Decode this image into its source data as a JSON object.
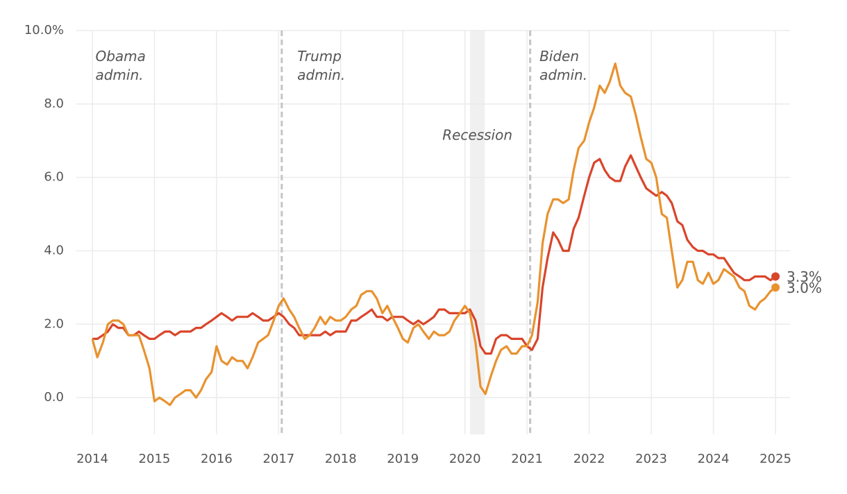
{
  "chart_data": {
    "type": "line",
    "x": [
      2014.0,
      2014.08,
      2014.17,
      2014.25,
      2014.33,
      2014.42,
      2014.5,
      2014.58,
      2014.67,
      2014.75,
      2014.83,
      2014.92,
      2015.0,
      2015.08,
      2015.17,
      2015.25,
      2015.33,
      2015.42,
      2015.5,
      2015.58,
      2015.67,
      2015.75,
      2015.83,
      2015.92,
      2016.0,
      2016.08,
      2016.17,
      2016.25,
      2016.33,
      2016.42,
      2016.5,
      2016.58,
      2016.67,
      2016.75,
      2016.83,
      2016.92,
      2017.0,
      2017.08,
      2017.17,
      2017.25,
      2017.33,
      2017.42,
      2017.5,
      2017.58,
      2017.67,
      2017.75,
      2017.83,
      2017.92,
      2018.0,
      2018.08,
      2018.17,
      2018.25,
      2018.33,
      2018.42,
      2018.5,
      2018.58,
      2018.67,
      2018.75,
      2018.83,
      2018.92,
      2019.0,
      2019.08,
      2019.17,
      2019.25,
      2019.33,
      2019.42,
      2019.5,
      2019.58,
      2019.67,
      2019.75,
      2019.83,
      2019.92,
      2020.0,
      2020.08,
      2020.17,
      2020.25,
      2020.33,
      2020.42,
      2020.5,
      2020.58,
      2020.67,
      2020.75,
      2020.83,
      2020.92,
      2021.0,
      2021.08,
      2021.17,
      2021.25,
      2021.33,
      2021.42,
      2021.5,
      2021.58,
      2021.67,
      2021.75,
      2021.83,
      2021.92,
      2022.0,
      2022.08,
      2022.17,
      2022.25,
      2022.33,
      2022.42,
      2022.5,
      2022.58,
      2022.67,
      2022.75,
      2022.83,
      2022.92,
      2023.0,
      2023.08,
      2023.17,
      2023.25,
      2023.33,
      2023.42,
      2023.5,
      2023.58,
      2023.67,
      2023.75,
      2023.83,
      2023.92,
      2024.0,
      2024.08,
      2024.17,
      2024.25,
      2024.33,
      2024.42,
      2024.5,
      2024.58,
      2024.67,
      2024.75,
      2024.83,
      2024.92,
      2025.0
    ],
    "series": [
      {
        "color": "#d9452b",
        "values": [
          1.6,
          1.6,
          1.7,
          1.8,
          2.0,
          1.9,
          1.9,
          1.7,
          1.7,
          1.8,
          1.7,
          1.6,
          1.6,
          1.7,
          1.8,
          1.8,
          1.7,
          1.8,
          1.8,
          1.8,
          1.9,
          1.9,
          2.0,
          2.1,
          2.2,
          2.3,
          2.2,
          2.1,
          2.2,
          2.2,
          2.2,
          2.3,
          2.2,
          2.1,
          2.1,
          2.2,
          2.3,
          2.2,
          2.0,
          1.9,
          1.7,
          1.7,
          1.7,
          1.7,
          1.7,
          1.8,
          1.7,
          1.8,
          1.8,
          1.8,
          2.1,
          2.1,
          2.2,
          2.3,
          2.4,
          2.2,
          2.2,
          2.1,
          2.2,
          2.2,
          2.2,
          2.1,
          2.0,
          2.1,
          2.0,
          2.1,
          2.2,
          2.4,
          2.4,
          2.3,
          2.3,
          2.3,
          2.3,
          2.4,
          2.1,
          1.4,
          1.2,
          1.2,
          1.6,
          1.7,
          1.7,
          1.6,
          1.6,
          1.6,
          1.4,
          1.3,
          1.6,
          3.0,
          3.8,
          4.5,
          4.3,
          4.0,
          4.0,
          4.6,
          4.9,
          5.5,
          6.0,
          6.4,
          6.5,
          6.2,
          6.0,
          5.9,
          5.9,
          6.3,
          6.6,
          6.3,
          6.0,
          5.7,
          5.6,
          5.5,
          5.6,
          5.5,
          5.3,
          4.8,
          4.7,
          4.3,
          4.1,
          4.0,
          4.0,
          3.9,
          3.9,
          3.8,
          3.8,
          3.6,
          3.4,
          3.3,
          3.2,
          3.2,
          3.3,
          3.3,
          3.3,
          3.2,
          3.3
        ],
        "end_label": "3.3%"
      },
      {
        "color": "#e8922f",
        "values": [
          1.6,
          1.1,
          1.5,
          2.0,
          2.1,
          2.1,
          2.0,
          1.7,
          1.7,
          1.7,
          1.3,
          0.8,
          -0.1,
          0.0,
          -0.1,
          -0.2,
          0.0,
          0.1,
          0.2,
          0.2,
          0.0,
          0.2,
          0.5,
          0.7,
          1.4,
          1.0,
          0.9,
          1.1,
          1.0,
          1.0,
          0.8,
          1.1,
          1.5,
          1.6,
          1.7,
          2.1,
          2.5,
          2.7,
          2.4,
          2.2,
          1.9,
          1.6,
          1.7,
          1.9,
          2.2,
          2.0,
          2.2,
          2.1,
          2.1,
          2.2,
          2.4,
          2.5,
          2.8,
          2.9,
          2.9,
          2.7,
          2.3,
          2.5,
          2.2,
          1.9,
          1.6,
          1.5,
          1.9,
          2.0,
          1.8,
          1.6,
          1.8,
          1.7,
          1.7,
          1.8,
          2.1,
          2.3,
          2.5,
          2.3,
          1.5,
          0.3,
          0.1,
          0.6,
          1.0,
          1.3,
          1.4,
          1.2,
          1.2,
          1.4,
          1.4,
          1.7,
          2.6,
          4.2,
          5.0,
          5.4,
          5.4,
          5.3,
          5.4,
          6.2,
          6.8,
          7.0,
          7.5,
          7.9,
          8.5,
          8.3,
          8.6,
          9.1,
          8.5,
          8.3,
          8.2,
          7.7,
          7.1,
          6.5,
          6.4,
          6.0,
          5.0,
          4.9,
          4.0,
          3.0,
          3.2,
          3.7,
          3.7,
          3.2,
          3.1,
          3.4,
          3.1,
          3.2,
          3.5,
          3.4,
          3.3,
          3.0,
          2.9,
          2.5,
          2.4,
          2.6,
          2.7,
          2.9,
          3.0
        ],
        "end_label": "3.0%"
      }
    ],
    "xlim": [
      2014,
      2025
    ],
    "xticks": [
      2014,
      2015,
      2016,
      2017,
      2018,
      2019,
      2020,
      2021,
      2022,
      2023,
      2024,
      2025
    ],
    "ylim": [
      -1,
      10
    ],
    "yticks": [
      {
        "value": 0,
        "label": "0.0"
      },
      {
        "value": 2,
        "label": "2.0"
      },
      {
        "value": 4,
        "label": "4.0"
      },
      {
        "value": 6,
        "label": "6.0"
      },
      {
        "value": 8,
        "label": "8.0"
      },
      {
        "value": 10,
        "label": "10.0%"
      }
    ],
    "grid": true,
    "vlines": [
      2017.05,
      2021.05
    ],
    "recession": {
      "label": "Recession",
      "x0": 2020.08,
      "x1": 2020.32
    },
    "admin_labels": [
      {
        "text": "Obama admin.",
        "x": 2014.05
      },
      {
        "text": "Trump admin.",
        "x": 2017.3
      },
      {
        "text": "Biden admin.",
        "x": 2021.2
      }
    ]
  }
}
